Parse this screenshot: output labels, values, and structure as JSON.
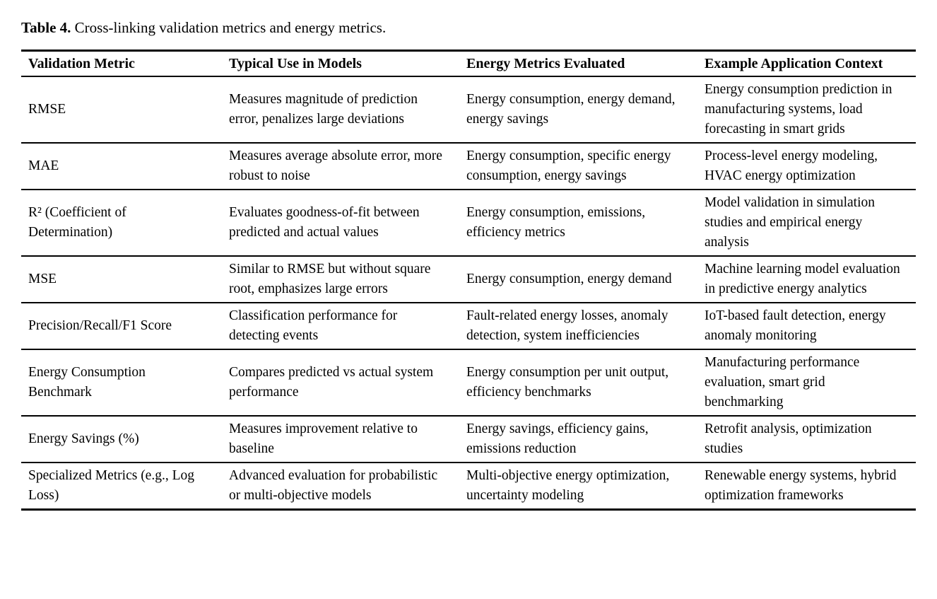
{
  "page": {
    "caption_label": "Table 4.",
    "caption_text": " Cross-linking validation metrics and energy metrics."
  },
  "colors": {
    "text": "#000000",
    "background": "#ffffff",
    "rule": "#000000"
  },
  "table": {
    "columns": [
      "Validation Metric",
      "Typical Use in Models",
      "Energy Metrics Evaluated",
      "Example Application Context"
    ],
    "rows": [
      {
        "cells": [
          "RMSE",
          "Measures magnitude of prediction error, penalizes large deviations",
          "Energy consumption, energy demand, energy savings",
          "Energy consumption prediction in manufacturing systems, load forecasting in smart grids"
        ]
      },
      {
        "cells": [
          "MAE",
          "Measures average absolute error, more robust to noise",
          "Energy consumption, specific energy consumption, energy savings",
          "Process-level energy modeling, HVAC energy optimization"
        ]
      },
      {
        "cells": [
          "R² (Coefficient of Determination)",
          "Evaluates goodness-of-fit between predicted and actual values",
          "Energy consumption, emissions, efficiency metrics",
          "Model validation in simulation studies and empirical energy analysis"
        ]
      },
      {
        "cells": [
          "MSE",
          "Similar to RMSE but without square root, emphasizes large errors",
          "Energy consumption, energy demand",
          "Machine learning model evaluation in predictive energy analytics"
        ]
      },
      {
        "cells": [
          "Precision/Recall/F1 Score",
          "Classification performance for detecting events",
          "Fault-related energy losses, anomaly detection, system inefficiencies",
          "IoT-based fault detection, energy anomaly monitoring"
        ]
      },
      {
        "cells": [
          "Energy Consumption Benchmark",
          "Compares predicted vs actual system performance",
          "Energy consumption per unit output, efficiency benchmarks",
          "Manufacturing performance evaluation, smart grid benchmarking"
        ]
      },
      {
        "cells": [
          "Energy Savings (%)",
          "Measures improvement relative to baseline",
          "Energy savings, efficiency gains, emissions reduction",
          "Retrofit analysis, optimization studies"
        ]
      },
      {
        "cells": [
          "Specialized Metrics (e.g., Log Loss)",
          "Advanced evaluation for probabilistic or multi-objective models",
          "Multi-objective energy optimization, uncertainty modeling",
          "Renewable energy systems, hybrid optimization frameworks"
        ]
      }
    ]
  }
}
